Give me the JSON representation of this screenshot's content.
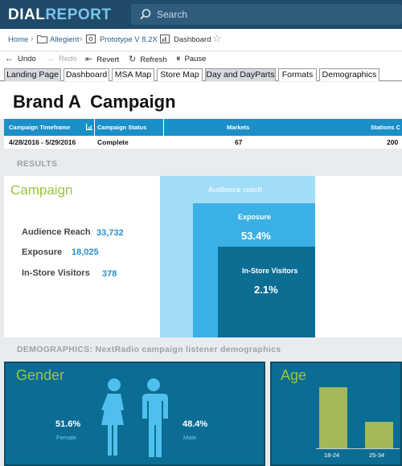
{
  "app": {
    "logo_part1": "DIAL",
    "logo_part2": "REPORT"
  },
  "search": {
    "placeholder": "Search"
  },
  "breadcrumb": {
    "home": "Home",
    "client": "Allegient",
    "project": "Prototype V 8.2X",
    "page": "Dashboard"
  },
  "toolbar": {
    "undo": "Undo",
    "redo": "Redo",
    "revert": "Revert",
    "refresh": "Refresh",
    "pause": "Pause"
  },
  "tabs": [
    "Landing Page",
    "Dashboard",
    "MSA Map",
    "Store Map",
    "Day and DayParts",
    "Formats",
    "Demographics"
  ],
  "title": "Brand A  Campaign",
  "summary": {
    "headers": [
      "Campaign Timeframe",
      "Campaign Status",
      "Markets",
      "Stations C"
    ],
    "row": [
      "4/28/2016 - 5/29/2016",
      "Complete",
      "67",
      "200"
    ]
  },
  "results": {
    "heading": "RESULTS",
    "campaign_label": "Campaign",
    "metrics": [
      {
        "label": "Audience Reach",
        "value": "33,732"
      },
      {
        "label": "Exposure",
        "value": "18,025"
      },
      {
        "label": "In-Store Visitors",
        "value": "378"
      }
    ],
    "funnel": {
      "reach_label": "Audience reach",
      "exposure_label": "Exposure",
      "exposure_pct": "53.4%",
      "visitors_label": "In-Store Visitors",
      "visitors_pct": "2.1%"
    }
  },
  "demographics": {
    "heading": "DEMOGRAPHICS: NextRadio campaign listener demographics",
    "gender": {
      "title": "Gender",
      "female_pct": "51.6%",
      "female_label": "Female",
      "male_pct": "48.4%",
      "male_label": "Male"
    },
    "age": {
      "title": "Age",
      "categories": [
        "18-24",
        "25-34"
      ]
    }
  },
  "colors": {
    "topbar": "#1f4a69",
    "accent_blue": "#1b8fc7",
    "accent_green": "#9bc43e",
    "panel_teal": "#0b6d93"
  }
}
